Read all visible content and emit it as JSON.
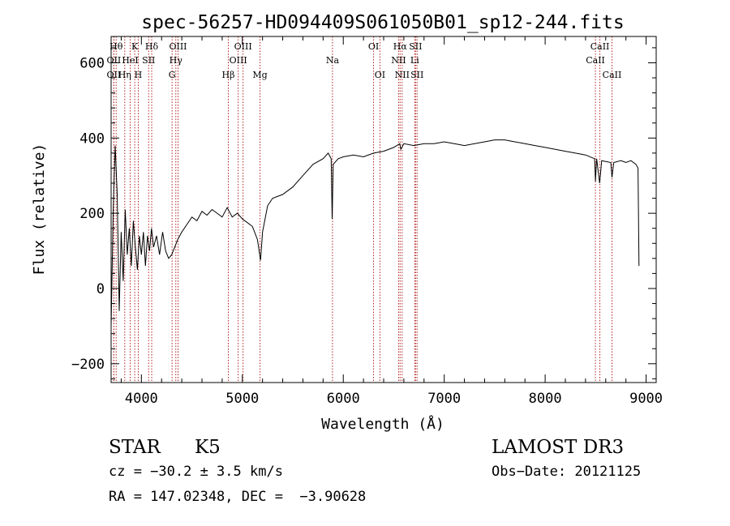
{
  "chart_data": {
    "type": "line",
    "title": "spec-56257-HD094409S061050B01_sp12-244.fits",
    "xlabel": "Wavelength (Å)",
    "ylabel": "Flux (relative)",
    "xlim": [
      3700,
      9100
    ],
    "ylim": [
      -250,
      670
    ],
    "xticks": [
      4000,
      5000,
      6000,
      7000,
      8000,
      9000
    ],
    "yticks": [
      -200,
      0,
      200,
      400,
      600
    ],
    "grid": false,
    "series": [
      {
        "values": [
          [
            3700,
            -100
          ],
          [
            3720,
            200
          ],
          [
            3740,
            380
          ],
          [
            3760,
            250
          ],
          [
            3780,
            -60
          ],
          [
            3800,
            150
          ],
          [
            3820,
            20
          ],
          [
            3840,
            210
          ],
          [
            3860,
            90
          ],
          [
            3880,
            160
          ],
          [
            3900,
            60
          ],
          [
            3920,
            180
          ],
          [
            3940,
            110
          ],
          [
            3960,
            50
          ],
          [
            3980,
            140
          ],
          [
            4000,
            90
          ],
          [
            4020,
            150
          ],
          [
            4040,
            60
          ],
          [
            4060,
            140
          ],
          [
            4080,
            100
          ],
          [
            4100,
            160
          ],
          [
            4120,
            110
          ],
          [
            4150,
            140
          ],
          [
            4180,
            90
          ],
          [
            4210,
            150
          ],
          [
            4240,
            100
          ],
          [
            4270,
            80
          ],
          [
            4300,
            90
          ],
          [
            4330,
            110
          ],
          [
            4360,
            130
          ],
          [
            4400,
            150
          ],
          [
            4450,
            170
          ],
          [
            4500,
            190
          ],
          [
            4550,
            180
          ],
          [
            4600,
            205
          ],
          [
            4650,
            195
          ],
          [
            4700,
            210
          ],
          [
            4750,
            200
          ],
          [
            4800,
            190
          ],
          [
            4850,
            215
          ],
          [
            4900,
            190
          ],
          [
            4950,
            200
          ],
          [
            5000,
            185
          ],
          [
            5050,
            175
          ],
          [
            5100,
            165
          ],
          [
            5150,
            130
          ],
          [
            5180,
            75
          ],
          [
            5200,
            150
          ],
          [
            5250,
            220
          ],
          [
            5300,
            240
          ],
          [
            5400,
            250
          ],
          [
            5500,
            270
          ],
          [
            5600,
            300
          ],
          [
            5700,
            330
          ],
          [
            5800,
            345
          ],
          [
            5850,
            360
          ],
          [
            5880,
            345
          ],
          [
            5890,
            185
          ],
          [
            5900,
            330
          ],
          [
            5950,
            345
          ],
          [
            6000,
            350
          ],
          [
            6100,
            355
          ],
          [
            6200,
            350
          ],
          [
            6300,
            360
          ],
          [
            6400,
            365
          ],
          [
            6500,
            375
          ],
          [
            6560,
            385
          ],
          [
            6570,
            370
          ],
          [
            6600,
            385
          ],
          [
            6700,
            380
          ],
          [
            6800,
            385
          ],
          [
            6900,
            385
          ],
          [
            7000,
            390
          ],
          [
            7100,
            385
          ],
          [
            7200,
            380
          ],
          [
            7300,
            385
          ],
          [
            7400,
            390
          ],
          [
            7500,
            395
          ],
          [
            7600,
            395
          ],
          [
            7700,
            390
          ],
          [
            7800,
            385
          ],
          [
            7900,
            380
          ],
          [
            8000,
            375
          ],
          [
            8100,
            370
          ],
          [
            8200,
            365
          ],
          [
            8300,
            360
          ],
          [
            8400,
            355
          ],
          [
            8490,
            345
          ],
          [
            8498,
            285
          ],
          [
            8510,
            345
          ],
          [
            8540,
            280
          ],
          [
            8560,
            340
          ],
          [
            8650,
            335
          ],
          [
            8662,
            295
          ],
          [
            8680,
            335
          ],
          [
            8750,
            340
          ],
          [
            8800,
            335
          ],
          [
            8850,
            340
          ],
          [
            8900,
            330
          ],
          [
            8920,
            320
          ],
          [
            8930,
            60
          ]
        ]
      }
    ],
    "annotations": [
      {
        "label": "OII",
        "x": 3727,
        "row": 3
      },
      {
        "label": "Hθ",
        "x": 3750,
        "row": 1
      },
      {
        "label": "OII",
        "x": 3727,
        "row": 2
      },
      {
        "label": "Hη",
        "x": 3835,
        "row": 3
      },
      {
        "label": "HeI",
        "x": 3889,
        "row": 2
      },
      {
        "label": "K",
        "x": 3934,
        "row": 1
      },
      {
        "label": "H",
        "x": 3969,
        "row": 3
      },
      {
        "label": "SII",
        "x": 4072,
        "row": 2
      },
      {
        "label": "Hδ",
        "x": 4102,
        "row": 1
      },
      {
        "label": "OIII",
        "x": 4363,
        "row": 1
      },
      {
        "label": "Hγ",
        "x": 4341,
        "row": 2
      },
      {
        "label": "G",
        "x": 4304,
        "row": 3
      },
      {
        "label": "OIII",
        "x": 5007,
        "row": 1
      },
      {
        "label": "OIII",
        "x": 4959,
        "row": 2
      },
      {
        "label": "Hβ",
        "x": 4861,
        "row": 3
      },
      {
        "label": "Mg",
        "x": 5175,
        "row": 3
      },
      {
        "label": "Na",
        "x": 5893,
        "row": 2
      },
      {
        "label": "OI",
        "x": 6300,
        "row": 1
      },
      {
        "label": "OI",
        "x": 6363,
        "row": 3
      },
      {
        "label": "Hα",
        "x": 6563,
        "row": 1
      },
      {
        "label": "NII",
        "x": 6548,
        "row": 2
      },
      {
        "label": "NII",
        "x": 6583,
        "row": 3
      },
      {
        "label": "SII",
        "x": 6716,
        "row": 1
      },
      {
        "label": "Li",
        "x": 6708,
        "row": 2
      },
      {
        "label": "SII",
        "x": 6731,
        "row": 3
      },
      {
        "label": "CaII",
        "x": 8542,
        "row": 1
      },
      {
        "label": "CaII",
        "x": 8498,
        "row": 2
      },
      {
        "label": "CaII",
        "x": 8662,
        "row": 3
      }
    ]
  },
  "info": {
    "object_class": "STAR",
    "subclass": "K5",
    "survey": "LAMOST DR3",
    "cz": "cz = −30.2 ± 3.5 km/s",
    "obs_date": "Obs−Date: 20121125",
    "coords": "RA = 147.02348, DEC =  −3.90628"
  }
}
